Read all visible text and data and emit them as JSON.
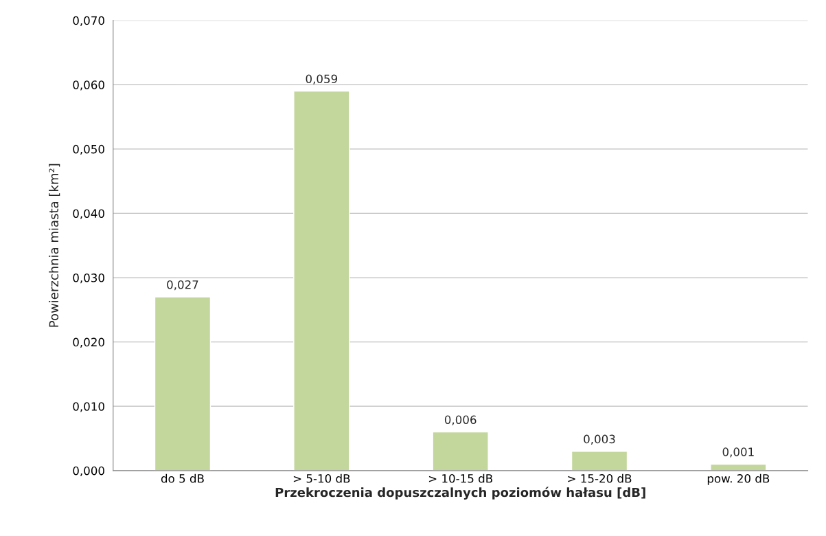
{
  "chart_data": {
    "type": "bar",
    "categories": [
      "do 5 dB",
      "> 5-10 dB",
      "> 10-15 dB",
      "> 15-20 dB",
      "pow. 20 dB"
    ],
    "values": [
      0.027,
      0.059,
      0.006,
      0.003,
      0.001
    ],
    "value_labels": [
      "0,027",
      "0,059",
      "0,006",
      "0,003",
      "0,001"
    ],
    "color": "#c3d69b",
    "xlabel": "Przekroczenia dopuszczalnych poziomów hałasu [dB]",
    "ylabel": "Powierzchnia miasta [km²]",
    "ylim": [
      0,
      0.07
    ],
    "yticks": [
      {
        "value": 0,
        "label": "0,000"
      },
      {
        "value": 0.01,
        "label": "0,010"
      },
      {
        "value": 0.02,
        "label": "0,020"
      },
      {
        "value": 0.03,
        "label": "0,030"
      },
      {
        "value": 0.04,
        "label": "0,040"
      },
      {
        "value": 0.05,
        "label": "0,050"
      },
      {
        "value": 0.06,
        "label": "0,060"
      },
      {
        "value": 0.07,
        "label": "0,070"
      }
    ],
    "grid": "y",
    "legend": false
  }
}
